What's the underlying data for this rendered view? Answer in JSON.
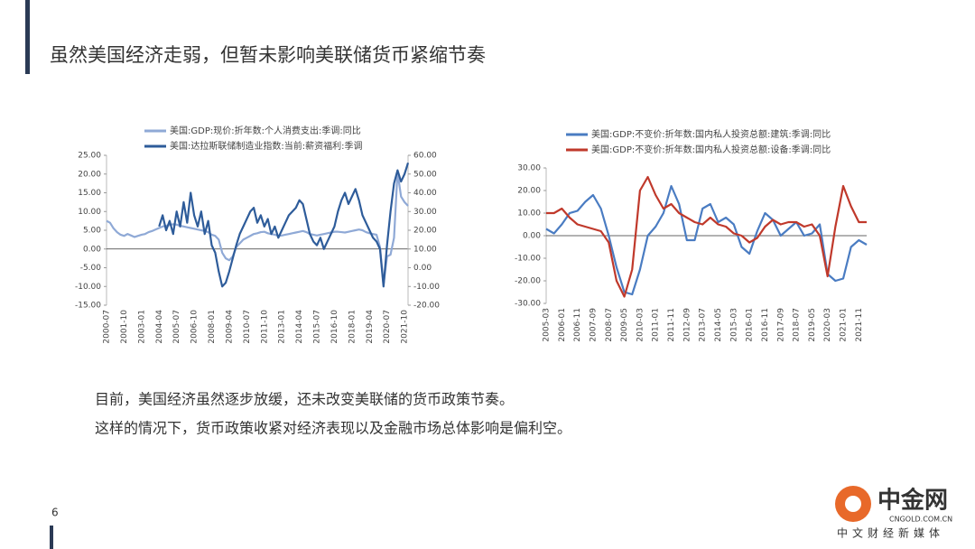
{
  "slide": {
    "title": "虽然美国经济走弱，但暂未影响美联储货币紧缩节奏",
    "body": [
      "目前，美国经济虽然逐步放缓，还未改变美联储的货币政策节奏。",
      "这样的情况下，货币政策收紧对经济表现以及金融市场总体影响是偏利空。"
    ],
    "page_number": "6",
    "logo": {
      "name": "中金网",
      "url": "CNGOLD.COM.CN",
      "tagline": "中文财经新媒体"
    }
  },
  "chart_data": [
    {
      "type": "line",
      "legend": "top",
      "categories": [
        "2000-07",
        null,
        null,
        null,
        null,
        "2001-10",
        null,
        null,
        null,
        null,
        "2003-01",
        null,
        null,
        null,
        null,
        "2004-04",
        null,
        null,
        null,
        null,
        "2005-07",
        null,
        null,
        null,
        null,
        "2006-10",
        null,
        null,
        null,
        null,
        "2008-01",
        null,
        null,
        null,
        null,
        "2009-04",
        null,
        null,
        null,
        null,
        "2010-07",
        null,
        null,
        null,
        null,
        "2011-10",
        null,
        null,
        null,
        null,
        "2013-01",
        null,
        null,
        null,
        null,
        "2014-04",
        null,
        null,
        null,
        null,
        "2015-07",
        null,
        null,
        null,
        null,
        "2016-10",
        null,
        null,
        null,
        null,
        "2018-01",
        null,
        null,
        null,
        null,
        "2019-04",
        null,
        null,
        null,
        null,
        "2020-07",
        null,
        null,
        null,
        null,
        "2021-10",
        null
      ],
      "series": [
        {
          "name": "美国:GDP:现价:折年数:个人消费支出:季调:同比",
          "color": "#8fa9d6",
          "values": [
            7.5,
            7.0,
            5.5,
            4.5,
            3.8,
            3.5,
            4.0,
            3.6,
            3.2,
            3.5,
            3.8,
            4.0,
            4.5,
            4.8,
            5.2,
            5.6,
            6.0,
            6.2,
            6.4,
            6.6,
            6.5,
            6.2,
            6.0,
            5.8,
            5.6,
            5.4,
            5.2,
            5.0,
            4.8,
            4.5,
            3.8,
            3.5,
            2.5,
            -1.0,
            -2.5,
            -3.0,
            -2.0,
            0.5,
            1.5,
            2.5,
            3.0,
            3.5,
            4.0,
            4.2,
            4.5,
            4.6,
            4.2,
            4.0,
            3.8,
            3.5,
            3.6,
            3.8,
            4.0,
            4.2,
            4.4,
            4.6,
            4.8,
            4.5,
            4.0,
            3.8,
            3.6,
            3.8,
            4.0,
            4.2,
            4.4,
            4.6,
            4.6,
            4.5,
            4.4,
            4.6,
            4.8,
            5.0,
            5.2,
            5.0,
            4.5,
            4.2,
            4.0,
            3.8,
            0.5,
            -9.5,
            -2.0,
            -1.5,
            3.0,
            20.5,
            14.0,
            12.5,
            11.5
          ]
        },
        {
          "name": "美国:达拉斯联储制造业指数:当前:薪资福利:季调",
          "color": "#2e5c9a",
          "axis": "y2",
          "values": [
            null,
            null,
            null,
            null,
            null,
            null,
            null,
            null,
            null,
            null,
            null,
            null,
            null,
            null,
            null,
            22,
            28,
            20,
            25,
            18,
            30,
            22,
            35,
            24,
            40,
            28,
            22,
            30,
            18,
            25,
            12,
            8,
            -2,
            -10,
            -8,
            -2,
            5,
            12,
            18,
            22,
            26,
            30,
            32,
            24,
            28,
            22,
            26,
            18,
            22,
            16,
            20,
            24,
            28,
            30,
            32,
            36,
            34,
            26,
            18,
            14,
            12,
            16,
            10,
            14,
            18,
            22,
            30,
            36,
            40,
            34,
            38,
            42,
            36,
            28,
            24,
            20,
            16,
            14,
            10,
            -10,
            12,
            30,
            45,
            52,
            46,
            50,
            56
          ]
        }
      ],
      "ylim": [
        -15,
        25
      ],
      "yticks": [
        {
          "value": -15,
          "label": "-15.00"
        },
        {
          "value": -10,
          "label": "-10.00"
        },
        {
          "value": -5,
          "label": "-5.00"
        },
        {
          "value": 0,
          "label": "0.00"
        },
        {
          "value": 5,
          "label": "5.00"
        },
        {
          "value": 10,
          "label": "10.00"
        },
        {
          "value": 15,
          "label": "15.00"
        },
        {
          "value": 20,
          "label": "20.00"
        },
        {
          "value": 25,
          "label": "25.00"
        }
      ],
      "y2lim": [
        -20,
        60
      ],
      "y2ticks": [
        {
          "value": -20,
          "label": "-20.00"
        },
        {
          "value": -10,
          "label": "-10.00"
        },
        {
          "value": 0,
          "label": "0.00"
        },
        {
          "value": 10,
          "label": "10.00"
        },
        {
          "value": 20,
          "label": "20.00"
        },
        {
          "value": 30,
          "label": "30.00"
        },
        {
          "value": 40,
          "label": "40.00"
        },
        {
          "value": 50,
          "label": "50.00"
        },
        {
          "value": 60,
          "label": "60.00"
        }
      ]
    },
    {
      "type": "line",
      "legend": "top",
      "categories": [
        "2005-03",
        null,
        "2006-01",
        null,
        "2006-11",
        null,
        "2007-09",
        null,
        "2008-07",
        null,
        "2009-05",
        null,
        "2010-03",
        null,
        "2011-01",
        null,
        "2011-11",
        null,
        "2012-09",
        null,
        "2013-07",
        null,
        "2014-05",
        null,
        "2015-03",
        null,
        "2016-01",
        null,
        "2016-11",
        null,
        "2017-09",
        null,
        "2018-07",
        null,
        "2019-05",
        null,
        "2020-03",
        null,
        "2021-01",
        null,
        "2021-11",
        null
      ],
      "series": [
        {
          "name": "美国:GDP:不变价:折年数:国内私人投资总额:建筑:季调:同比",
          "color": "#4a7cc2",
          "values": [
            3,
            1,
            5,
            10,
            11,
            15,
            18,
            12,
            0,
            -14,
            -25,
            -26,
            -15,
            0,
            4,
            10,
            22,
            14,
            -2,
            -2,
            12,
            14,
            6,
            8,
            5,
            -5,
            -8,
            2,
            10,
            7,
            0,
            3,
            6,
            0,
            1,
            5,
            -17,
            -20,
            -19,
            -5,
            -2,
            -4
          ]
        },
        {
          "name": "美国:GDP:不变价:折年数:国内私人投资总额:设备:季调:同比",
          "color": "#c0392b",
          "values": [
            10,
            10,
            12,
            8,
            5,
            4,
            3,
            2,
            -3,
            -20,
            -27,
            -15,
            20,
            26,
            18,
            12,
            14,
            10,
            8,
            6,
            5,
            8,
            5,
            4,
            1,
            0,
            -3,
            -1,
            4,
            7,
            5,
            6,
            6,
            4,
            5,
            0,
            -18,
            4,
            22,
            13,
            6,
            6
          ]
        }
      ],
      "ylim": [
        -30,
        30
      ],
      "yticks": [
        {
          "value": -30,
          "label": "-30.00"
        },
        {
          "value": -20,
          "label": "-20.00"
        },
        {
          "value": -10,
          "label": "-10.00"
        },
        {
          "value": 0,
          "label": "0.00"
        },
        {
          "value": 10,
          "label": "10.00"
        },
        {
          "value": 20,
          "label": "20.00"
        },
        {
          "value": 30,
          "label": "30.00"
        }
      ]
    }
  ]
}
